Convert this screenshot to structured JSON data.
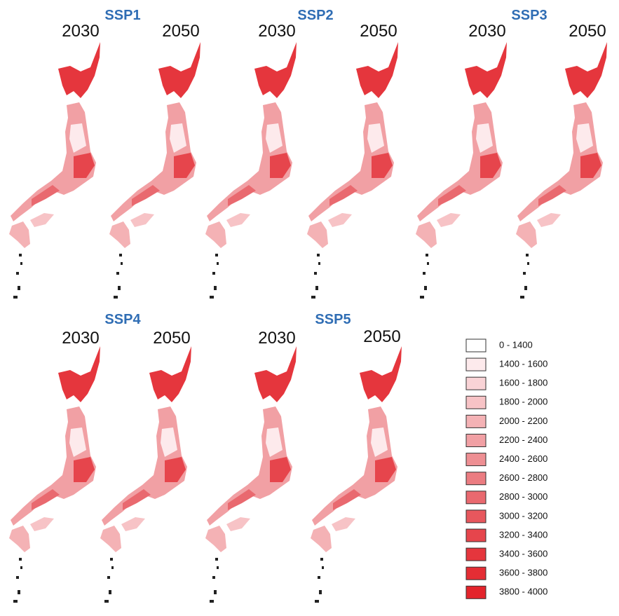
{
  "panels": [
    {
      "scenario": "SSP1",
      "years": [
        "2030",
        "2050"
      ]
    },
    {
      "scenario": "SSP2",
      "years": [
        "2030",
        "2050"
      ]
    },
    {
      "scenario": "SSP3",
      "years": [
        "2030",
        "2050"
      ]
    },
    {
      "scenario": "SSP4",
      "years": [
        "2030",
        "2050"
      ]
    },
    {
      "scenario": "SSP5",
      "years": [
        "2030",
        "2050"
      ]
    }
  ],
  "legend": {
    "items": [
      {
        "label": "0 - 1400",
        "color": "#ffffff"
      },
      {
        "label": "1400 - 1600",
        "color": "#fdeaec"
      },
      {
        "label": "1600 - 1800",
        "color": "#f9d3d6"
      },
      {
        "label": "1800 - 2000",
        "color": "#f7c3c6"
      },
      {
        "label": "2000 - 2200",
        "color": "#f4b2b5"
      },
      {
        "label": "2200 - 2400",
        "color": "#f1a0a4"
      },
      {
        "label": "2400 - 2600",
        "color": "#ee8f93"
      },
      {
        "label": "2600 - 2800",
        "color": "#eb7c81"
      },
      {
        "label": "2800 - 3000",
        "color": "#e9696f"
      },
      {
        "label": "3000 - 3200",
        "color": "#e7575d"
      },
      {
        "label": "3200 - 3400",
        "color": "#e6454c"
      },
      {
        "label": "3400 - 3600",
        "color": "#e5363d"
      },
      {
        "label": "3600 - 3800",
        "color": "#e42d34"
      },
      {
        "label": "3800 - 4000",
        "color": "#e3242b"
      }
    ]
  }
}
